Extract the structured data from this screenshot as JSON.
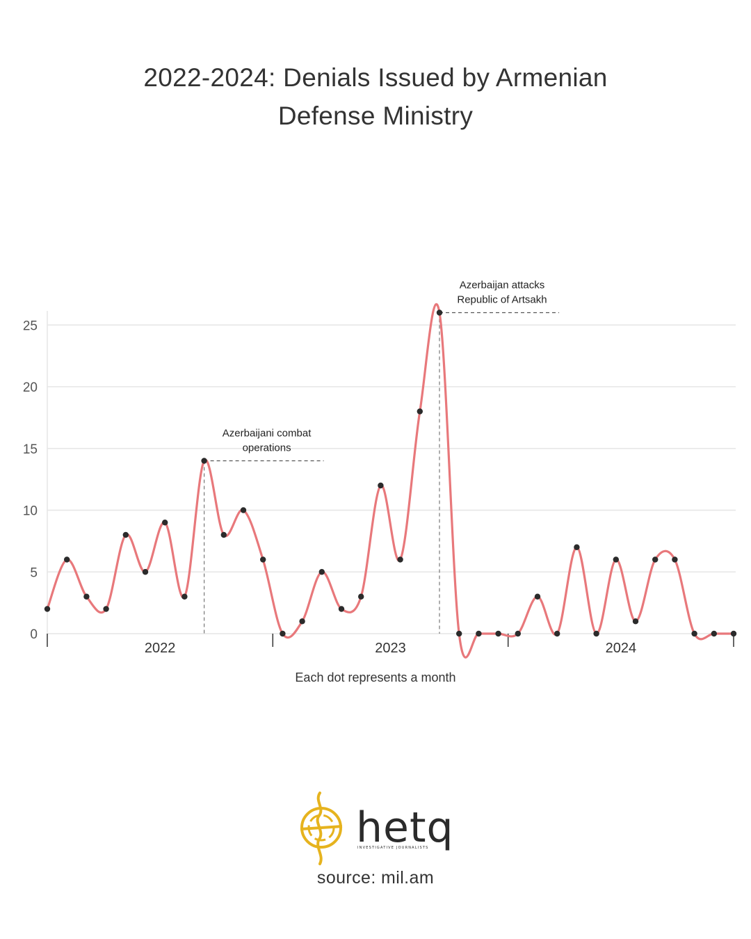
{
  "title": "2022-2024: Denials Issued by Armenian Defense Ministry",
  "chart_data": {
    "type": "line",
    "title": "2022-2024: Denials Issued by Armenian Defense Ministry",
    "xlabel": "Each dot represents a month",
    "ylabel": "",
    "ylim": [
      0,
      26
    ],
    "yticks": [
      0,
      5,
      10,
      15,
      20,
      25
    ],
    "year_labels": [
      "2022",
      "2023",
      "2024"
    ],
    "grid": "horizontal",
    "line_color": "#e8787b",
    "dot_color": "#2b2b2b",
    "series": [
      {
        "values": [
          2,
          6,
          3,
          2,
          8,
          5,
          9,
          3,
          14,
          8,
          10,
          6,
          0,
          1,
          5,
          2,
          3,
          12,
          6,
          18,
          26,
          0,
          0,
          0,
          0,
          3,
          0,
          7,
          0,
          6,
          1,
          6,
          6,
          0,
          0,
          0
        ]
      }
    ],
    "annotations": [
      {
        "index": 8,
        "value": 14,
        "line1": "Azerbaijani combat",
        "line2": "operations"
      },
      {
        "index": 20,
        "value": 26,
        "line1": "Azerbaijan attacks",
        "line2": "Republic of Artsakh"
      }
    ]
  },
  "logo": {
    "name": "hetq",
    "tagline": "INVESTIGATIVE JOURNALISTS",
    "accent": "#e6b31e",
    "text_color": "#2b2b2b"
  },
  "source": "source: mil.am"
}
